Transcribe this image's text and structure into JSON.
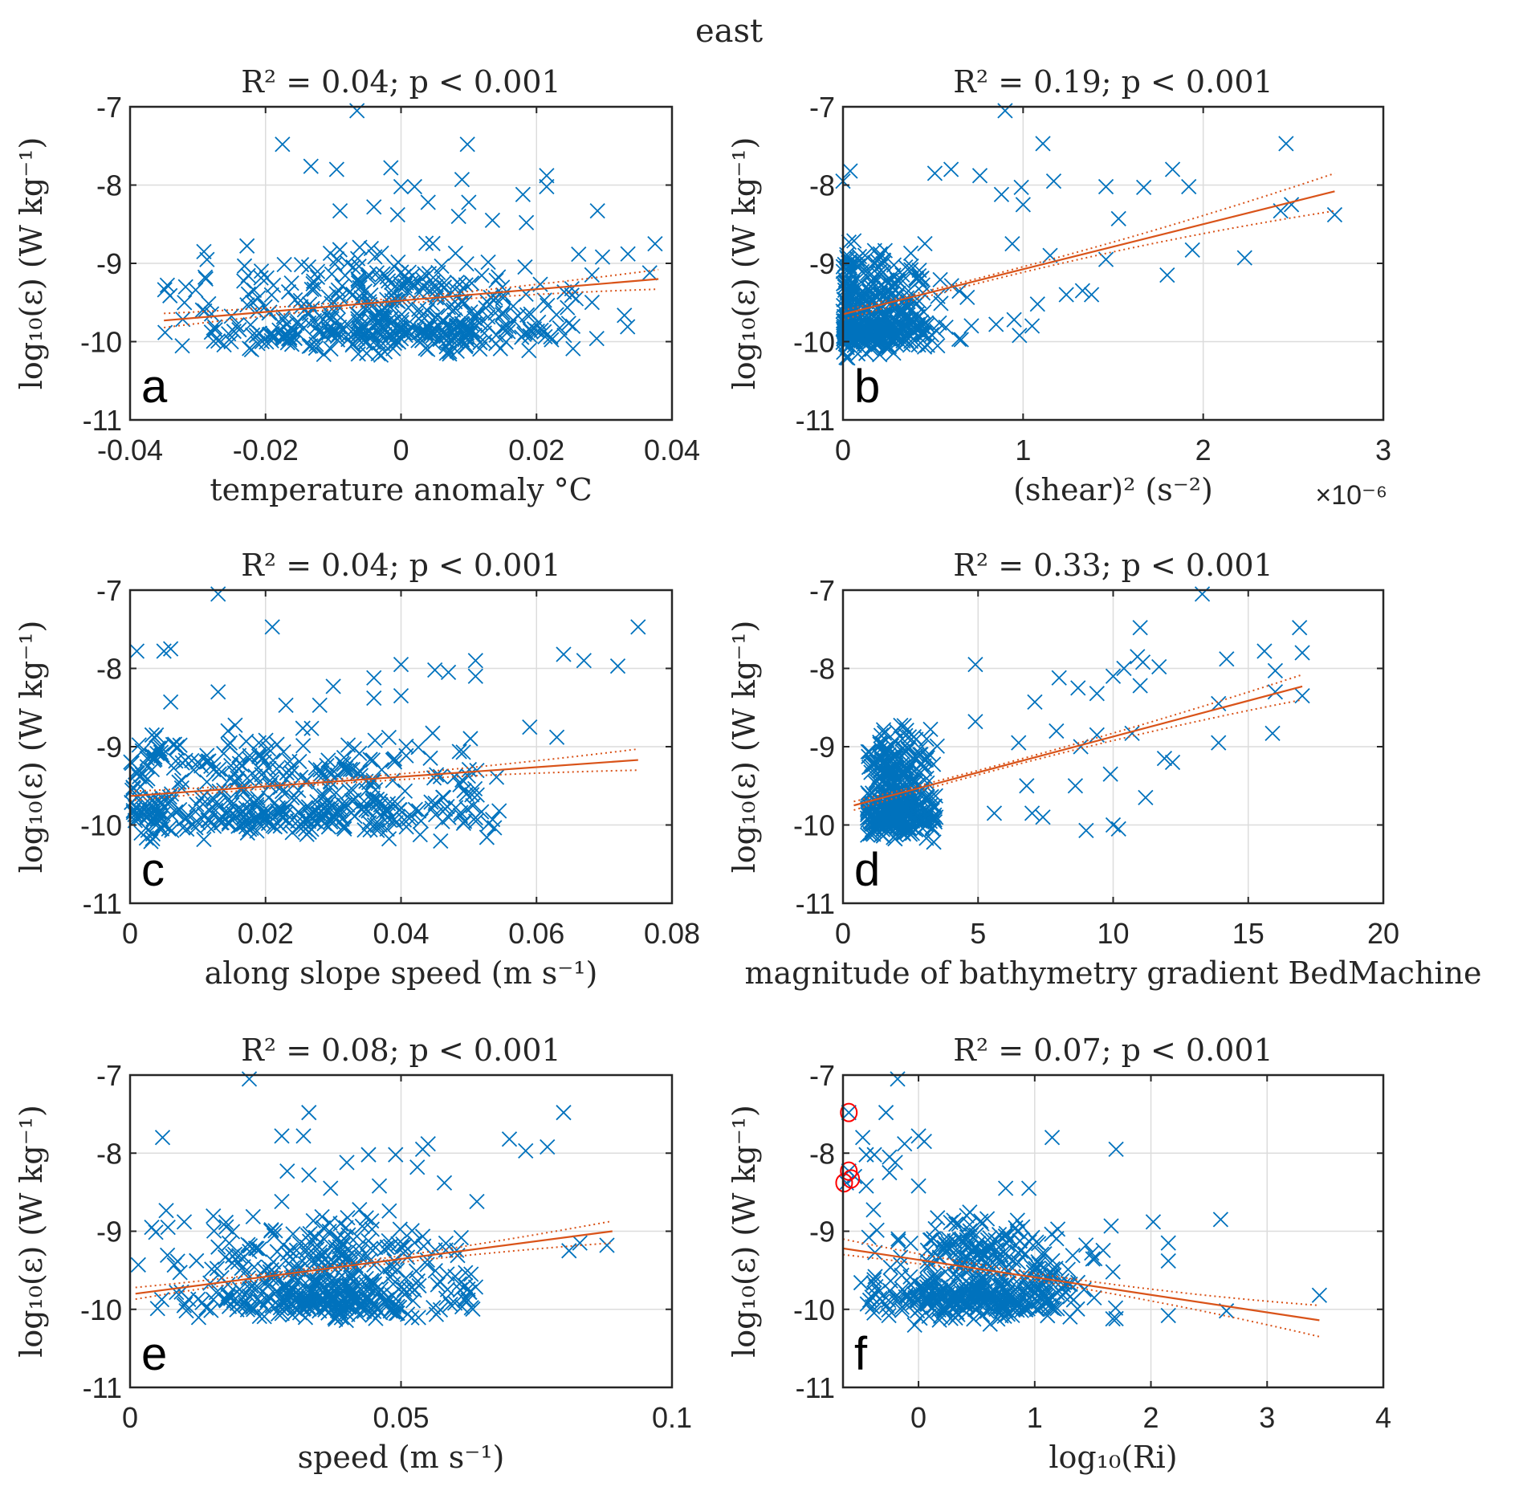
{
  "figure_title": "east",
  "colors": {
    "marker": "#0072BD",
    "fit": "#D95319",
    "outlier_circle": "#FF0000",
    "grid": "#DCDCDC",
    "axis": "#262626"
  },
  "chart_data": [
    {
      "type": "scatter",
      "panel_label": "a",
      "title": "R² = 0.04; p < 0.001",
      "xlabel": "temperature anomaly °C",
      "ylabel": "log₁₀(ε) (W kg⁻¹)",
      "xlim": [
        -0.04,
        0.04
      ],
      "ylim": [
        -11,
        -7
      ],
      "xticks": [
        -0.04,
        -0.02,
        0,
        0.02,
        0.04
      ],
      "xtick_labels": [
        "-0.04",
        "-0.02",
        "0",
        "0.02",
        "0.04"
      ],
      "yticks": [
        -11,
        -10,
        -9,
        -8,
        -7
      ],
      "ytick_labels": [
        "-11",
        "-10",
        "-9",
        "-8",
        "-7"
      ],
      "x_exponent_label": "",
      "grid": true,
      "fit": {
        "x": [
          -0.035,
          0.038
        ],
        "y": [
          -9.73,
          -9.2
        ]
      },
      "ci_upper": {
        "x": [
          -0.035,
          0.038
        ],
        "y": [
          -9.64,
          -9.08
        ]
      },
      "ci_lower": {
        "x": [
          -0.035,
          0.038
        ],
        "y": [
          -9.82,
          -9.33
        ]
      },
      "cluster": {
        "x_center": -0.002,
        "x_spread": 0.013,
        "y_center": -9.6,
        "y_spread": 0.35,
        "n": 480,
        "x_min": -0.035,
        "x_max": 0.038
      },
      "outliers": [
        [
          -0.0065,
          -7.05
        ],
        [
          -0.0175,
          -7.48
        ],
        [
          0.0098,
          -7.48
        ],
        [
          -0.0133,
          -7.76
        ],
        [
          -0.0095,
          -7.8
        ],
        [
          -0.0015,
          -7.78
        ],
        [
          0.009,
          -7.93
        ],
        [
          0.0215,
          -7.88
        ],
        [
          0.0215,
          -8.02
        ],
        [
          0.0,
          -8.02
        ],
        [
          0.002,
          -8.02
        ],
        [
          0.018,
          -8.12
        ],
        [
          0.004,
          -8.22
        ],
        [
          0.01,
          -8.22
        ],
        [
          -0.009,
          -8.33
        ],
        [
          -0.004,
          -8.28
        ],
        [
          0.029,
          -8.33
        ],
        [
          0.0085,
          -8.4
        ],
        [
          -0.0005,
          -8.38
        ],
        [
          0.0135,
          -8.45
        ],
        [
          0.0185,
          -8.48
        ],
        [
          0.0375,
          -8.75
        ],
        [
          0.0335,
          -8.88
        ],
        [
          -0.0345,
          -9.28
        ],
        [
          -0.0318,
          -9.3
        ]
      ],
      "outlier_circles": []
    },
    {
      "type": "scatter",
      "panel_label": "b",
      "title": "R² = 0.19; p < 0.001",
      "xlabel": "(shear)² (s⁻²)",
      "ylabel": "log₁₀(ε) (W kg⁻¹)",
      "xlim": [
        0,
        3
      ],
      "ylim": [
        -11,
        -7
      ],
      "xticks": [
        0,
        1,
        2,
        3
      ],
      "xtick_labels": [
        "0",
        "1",
        "2",
        "3"
      ],
      "yticks": [
        -11,
        -10,
        -9,
        -8,
        -7
      ],
      "ytick_labels": [
        "-11",
        "-10",
        "-9",
        "-8",
        "-7"
      ],
      "x_exponent_label": "×10⁻⁶",
      "grid": true,
      "fit": {
        "x": [
          0,
          2.73
        ],
        "y": [
          -9.65,
          -8.08
        ]
      },
      "ci_upper": {
        "x": [
          0,
          2.73
        ],
        "y": [
          -9.6,
          -7.85
        ]
      },
      "ci_lower": {
        "x": [
          0,
          2.73
        ],
        "y": [
          -9.72,
          -8.33
        ]
      },
      "cluster": {
        "x_center": 0.15,
        "x_spread": 0.2,
        "y_center": -9.6,
        "y_spread": 0.35,
        "n": 480,
        "x_min": 0,
        "x_max": 0.8
      },
      "outliers": [
        [
          0.9,
          -7.05
        ],
        [
          1.11,
          -7.47
        ],
        [
          2.46,
          -7.47
        ],
        [
          1.83,
          -7.8
        ],
        [
          0.04,
          -7.82
        ],
        [
          0.0,
          -7.95
        ],
        [
          0.51,
          -7.85
        ],
        [
          0.6,
          -7.8
        ],
        [
          0.76,
          -7.88
        ],
        [
          0.99,
          -8.03
        ],
        [
          1.17,
          -7.95
        ],
        [
          1.46,
          -8.02
        ],
        [
          1.67,
          -8.03
        ],
        [
          1.92,
          -8.02
        ],
        [
          0.88,
          -8.12
        ],
        [
          1.0,
          -8.25
        ],
        [
          2.49,
          -8.25
        ],
        [
          2.43,
          -8.33
        ],
        [
          2.73,
          -8.38
        ],
        [
          1.53,
          -8.43
        ],
        [
          0.94,
          -8.75
        ],
        [
          1.15,
          -8.9
        ],
        [
          1.94,
          -8.83
        ],
        [
          2.23,
          -8.93
        ],
        [
          1.46,
          -8.95
        ],
        [
          1.8,
          -9.15
        ],
        [
          1.24,
          -9.4
        ],
        [
          1.33,
          -9.35
        ],
        [
          1.38,
          -9.4
        ],
        [
          1.08,
          -9.52
        ],
        [
          0.95,
          -9.72
        ],
        [
          1.05,
          -9.8
        ],
        [
          0.85,
          -9.78
        ],
        [
          0.98,
          -9.92
        ]
      ],
      "outlier_circles": []
    },
    {
      "type": "scatter",
      "panel_label": "c",
      "title": "R² = 0.04; p < 0.001",
      "xlabel": "along slope speed (m s⁻¹)",
      "ylabel": "log₁₀(ε) (W kg⁻¹)",
      "xlim": [
        0,
        0.08
      ],
      "ylim": [
        -11,
        -7
      ],
      "xticks": [
        0,
        0.02,
        0.04,
        0.06,
        0.08
      ],
      "xtick_labels": [
        "0",
        "0.02",
        "0.04",
        "0.06",
        "0.08"
      ],
      "yticks": [
        -11,
        -10,
        -9,
        -8,
        -7
      ],
      "ytick_labels": [
        "-11",
        "-10",
        "-9",
        "-8",
        "-7"
      ],
      "x_exponent_label": "",
      "grid": true,
      "fit": {
        "x": [
          0,
          0.075
        ],
        "y": [
          -9.63,
          -9.17
        ]
      },
      "ci_upper": {
        "x": [
          0,
          0.075
        ],
        "y": [
          -9.57,
          -9.03
        ]
      },
      "ci_lower": {
        "x": [
          0,
          0.075
        ],
        "y": [
          -9.69,
          -9.3
        ]
      },
      "cluster": {
        "x_center": 0.022,
        "x_spread": 0.016,
        "y_center": -9.6,
        "y_spread": 0.33,
        "n": 480,
        "x_min": 0,
        "x_max": 0.055
      },
      "outliers": [
        [
          0.013,
          -7.05
        ],
        [
          0.021,
          -7.47
        ],
        [
          0.075,
          -7.47
        ],
        [
          0.001,
          -7.78
        ],
        [
          0.005,
          -7.78
        ],
        [
          0.006,
          -7.75
        ],
        [
          0.064,
          -7.82
        ],
        [
          0.067,
          -7.9
        ],
        [
          0.072,
          -7.97
        ],
        [
          0.051,
          -7.9
        ],
        [
          0.04,
          -7.95
        ],
        [
          0.045,
          -8.02
        ],
        [
          0.047,
          -8.05
        ],
        [
          0.051,
          -8.1
        ],
        [
          0.036,
          -8.12
        ],
        [
          0.03,
          -8.23
        ],
        [
          0.013,
          -8.3
        ],
        [
          0.04,
          -8.35
        ],
        [
          0.036,
          -8.38
        ],
        [
          0.006,
          -8.43
        ],
        [
          0.023,
          -8.47
        ],
        [
          0.028,
          -8.47
        ],
        [
          0.059,
          -8.75
        ],
        [
          0.063,
          -8.88
        ]
      ],
      "outlier_circles": []
    },
    {
      "type": "scatter",
      "panel_label": "d",
      "title": "R² = 0.33; p < 0.001",
      "xlabel": "magnitude of bathymetry gradient BedMachine",
      "ylabel": "log₁₀(ε) (W kg⁻¹)",
      "xlim": [
        0,
        20
      ],
      "ylim": [
        -11,
        -7
      ],
      "xticks": [
        0,
        5,
        10,
        15,
        20
      ],
      "xtick_labels": [
        "0",
        "5",
        "10",
        "15",
        "20"
      ],
      "yticks": [
        -11,
        -10,
        -9,
        -8,
        -7
      ],
      "ytick_labels": [
        "-11",
        "-10",
        "-9",
        "-8",
        "-7"
      ],
      "x_exponent_label": "",
      "grid": true,
      "fit": {
        "x": [
          0.4,
          17
        ],
        "y": [
          -9.75,
          -8.23
        ]
      },
      "ci_upper": {
        "x": [
          0.4,
          17
        ],
        "y": [
          -9.7,
          -8.08
        ]
      },
      "ci_lower": {
        "x": [
          0.4,
          17
        ],
        "y": [
          -9.81,
          -8.4
        ]
      },
      "cluster": {
        "x_center": 2.0,
        "x_spread": 0.7,
        "y_center": -9.55,
        "y_spread": 0.35,
        "n": 430,
        "x_min": 0.9,
        "x_max": 3.5
      },
      "outliers": [
        [
          13.3,
          -7.05
        ],
        [
          11.0,
          -7.48
        ],
        [
          16.9,
          -7.48
        ],
        [
          15.6,
          -7.78
        ],
        [
          17.0,
          -7.8
        ],
        [
          10.9,
          -7.85
        ],
        [
          11.1,
          -7.92
        ],
        [
          14.2,
          -7.88
        ],
        [
          11.7,
          -7.98
        ],
        [
          4.9,
          -7.95
        ],
        [
          10.4,
          -8.0
        ],
        [
          10.0,
          -8.1
        ],
        [
          8.0,
          -8.12
        ],
        [
          16.0,
          -8.03
        ],
        [
          8.7,
          -8.25
        ],
        [
          9.4,
          -8.32
        ],
        [
          11.0,
          -8.22
        ],
        [
          16.0,
          -8.3
        ],
        [
          17.0,
          -8.35
        ],
        [
          7.1,
          -8.43
        ],
        [
          13.9,
          -8.45
        ],
        [
          4.9,
          -8.68
        ],
        [
          7.9,
          -8.8
        ],
        [
          10.7,
          -8.83
        ],
        [
          15.9,
          -8.83
        ],
        [
          13.9,
          -8.95
        ],
        [
          6.5,
          -8.95
        ],
        [
          9.4,
          -8.85
        ],
        [
          8.8,
          -9.0
        ],
        [
          11.9,
          -9.15
        ],
        [
          12.2,
          -9.2
        ],
        [
          5.6,
          -9.85
        ],
        [
          7.0,
          -9.85
        ],
        [
          7.4,
          -9.9
        ],
        [
          9.0,
          -10.07
        ],
        [
          10.0,
          -10.0
        ],
        [
          10.2,
          -10.05
        ],
        [
          11.2,
          -9.65
        ],
        [
          8.6,
          -9.5
        ],
        [
          9.9,
          -9.35
        ],
        [
          6.8,
          -9.5
        ]
      ],
      "outlier_circles": []
    },
    {
      "type": "scatter",
      "panel_label": "e",
      "title": "R² = 0.08; p < 0.001",
      "xlabel": "speed (m s⁻¹)",
      "ylabel": "log₁₀(ε) (W kg⁻¹)",
      "xlim": [
        0,
        0.1
      ],
      "ylim": [
        -11,
        -7
      ],
      "xticks": [
        0,
        0.05,
        0.1
      ],
      "xtick_labels": [
        "0",
        "0.05",
        "0.1"
      ],
      "yticks": [
        -11,
        -10,
        -9,
        -8,
        -7
      ],
      "ytick_labels": [
        "-11",
        "-10",
        "-9",
        "-8",
        "-7"
      ],
      "x_exponent_label": "",
      "grid": true,
      "fit": {
        "x": [
          0.001,
          0.089
        ],
        "y": [
          -9.8,
          -9.0
        ]
      },
      "ci_upper": {
        "x": [
          0.001,
          0.089
        ],
        "y": [
          -9.72,
          -8.87
        ]
      },
      "ci_lower": {
        "x": [
          0.001,
          0.089
        ],
        "y": [
          -9.87,
          -9.15
        ]
      },
      "cluster": {
        "x_center": 0.036,
        "x_spread": 0.014,
        "y_center": -9.55,
        "y_spread": 0.35,
        "n": 480,
        "x_min": 0.001,
        "x_max": 0.064
      },
      "outliers": [
        [
          0.022,
          -7.05
        ],
        [
          0.033,
          -7.48
        ],
        [
          0.08,
          -7.48
        ],
        [
          0.006,
          -7.8
        ],
        [
          0.028,
          -7.78
        ],
        [
          0.032,
          -7.78
        ],
        [
          0.07,
          -7.82
        ],
        [
          0.073,
          -7.97
        ],
        [
          0.077,
          -7.92
        ],
        [
          0.044,
          -8.02
        ],
        [
          0.049,
          -8.02
        ],
        [
          0.054,
          -7.95
        ],
        [
          0.055,
          -7.88
        ],
        [
          0.04,
          -8.12
        ],
        [
          0.029,
          -8.23
        ],
        [
          0.033,
          -8.28
        ],
        [
          0.053,
          -8.18
        ],
        [
          0.058,
          -8.38
        ],
        [
          0.037,
          -8.45
        ],
        [
          0.046,
          -8.42
        ],
        [
          0.028,
          -8.62
        ],
        [
          0.064,
          -8.62
        ],
        [
          0.004,
          -8.95
        ],
        [
          0.007,
          -8.95
        ],
        [
          0.01,
          -8.88
        ],
        [
          0.083,
          -9.15
        ],
        [
          0.088,
          -9.18
        ],
        [
          0.081,
          -9.25
        ]
      ],
      "outlier_circles": []
    },
    {
      "type": "scatter",
      "panel_label": "f",
      "title": "R² = 0.07; p < 0.001",
      "xlabel": "log₁₀(Ri)",
      "ylabel": "log₁₀(ε) (W kg⁻¹)",
      "xlim": [
        -0.65,
        4
      ],
      "ylim": [
        -11,
        -7
      ],
      "xticks": [
        0,
        1,
        2,
        3,
        4
      ],
      "xtick_labels": [
        "0",
        "1",
        "2",
        "3",
        "4"
      ],
      "yticks": [
        -11,
        -10,
        -9,
        -8,
        -7
      ],
      "ytick_labels": [
        "-11",
        "-10",
        "-9",
        "-8",
        "-7"
      ],
      "x_exponent_label": "",
      "grid": true,
      "fit": {
        "x": [
          -0.65,
          3.45
        ],
        "y": [
          -9.22,
          -10.14
        ]
      },
      "ci_upper": {
        "x": [
          -0.65,
          3.45
        ],
        "y": [
          -9.1,
          -9.95
        ]
      },
      "ci_lower": {
        "x": [
          -0.65,
          3.45
        ],
        "y": [
          -9.3,
          -10.35
        ]
      },
      "cluster": {
        "x_center": 0.6,
        "x_spread": 0.45,
        "y_center": -9.6,
        "y_spread": 0.33,
        "n": 480,
        "x_min": -0.5,
        "x_max": 1.7
      },
      "outliers": [
        [
          -0.18,
          -7.05
        ],
        [
          -0.6,
          -7.48
        ],
        [
          -0.28,
          -7.48
        ],
        [
          -0.48,
          -7.8
        ],
        [
          0.0,
          -7.78
        ],
        [
          0.05,
          -7.85
        ],
        [
          -0.12,
          -7.88
        ],
        [
          1.15,
          -7.8
        ],
        [
          1.7,
          -7.95
        ],
        [
          -0.45,
          -8.02
        ],
        [
          -0.38,
          -8.02
        ],
        [
          -0.25,
          -8.05
        ],
        [
          -0.2,
          -8.12
        ],
        [
          -0.6,
          -8.23
        ],
        [
          -0.55,
          -8.3
        ],
        [
          -0.62,
          -8.38
        ],
        [
          -0.45,
          -8.42
        ],
        [
          -0.25,
          -8.25
        ],
        [
          0.0,
          -8.42
        ],
        [
          0.75,
          -8.45
        ],
        [
          0.95,
          -8.45
        ],
        [
          2.6,
          -8.85
        ],
        [
          2.02,
          -8.88
        ],
        [
          2.15,
          -9.15
        ],
        [
          2.15,
          -9.38
        ],
        [
          3.45,
          -9.82
        ],
        [
          2.65,
          -10.02
        ],
        [
          2.15,
          -10.08
        ],
        [
          1.7,
          -10.12
        ]
      ],
      "outlier_circles": [
        [
          -0.6,
          -7.48
        ],
        [
          -0.6,
          -8.23
        ],
        [
          -0.58,
          -8.33
        ],
        [
          -0.64,
          -8.38
        ]
      ]
    }
  ]
}
